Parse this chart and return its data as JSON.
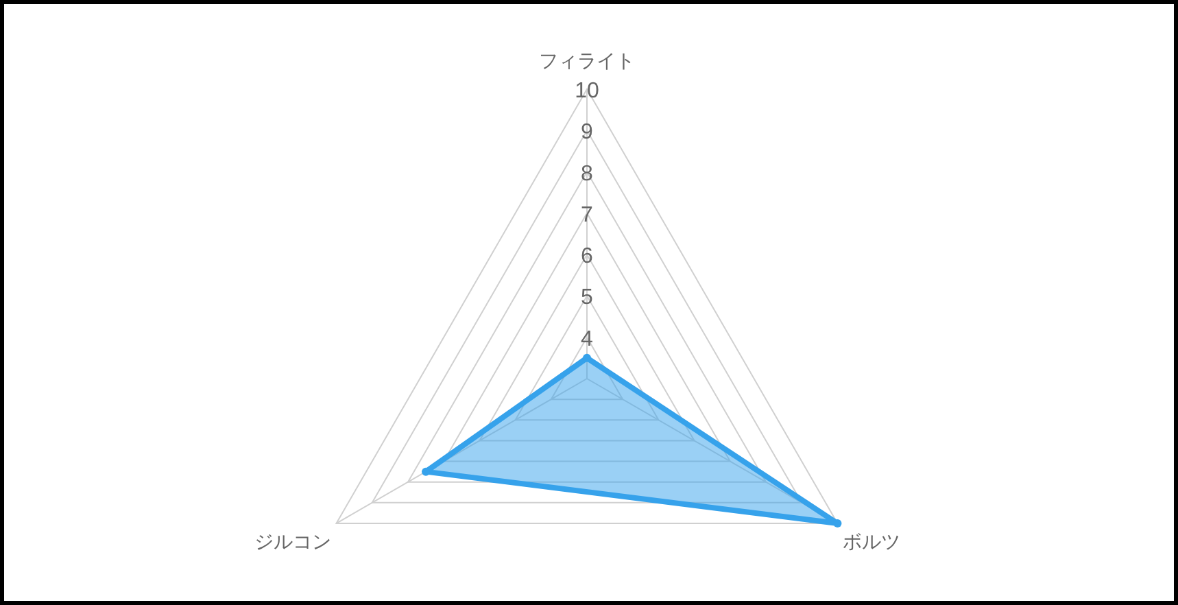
{
  "chart_data": {
    "type": "radar",
    "categories": [
      "フィライト",
      "ボルツ",
      "ジルコン"
    ],
    "ylim": [
      3,
      10
    ],
    "yticks": [
      4,
      5,
      6,
      7,
      8,
      9,
      10
    ],
    "series": [
      {
        "color": "#36a2eb",
        "values": [
          3.5,
          10,
          7.5
        ]
      }
    ]
  }
}
